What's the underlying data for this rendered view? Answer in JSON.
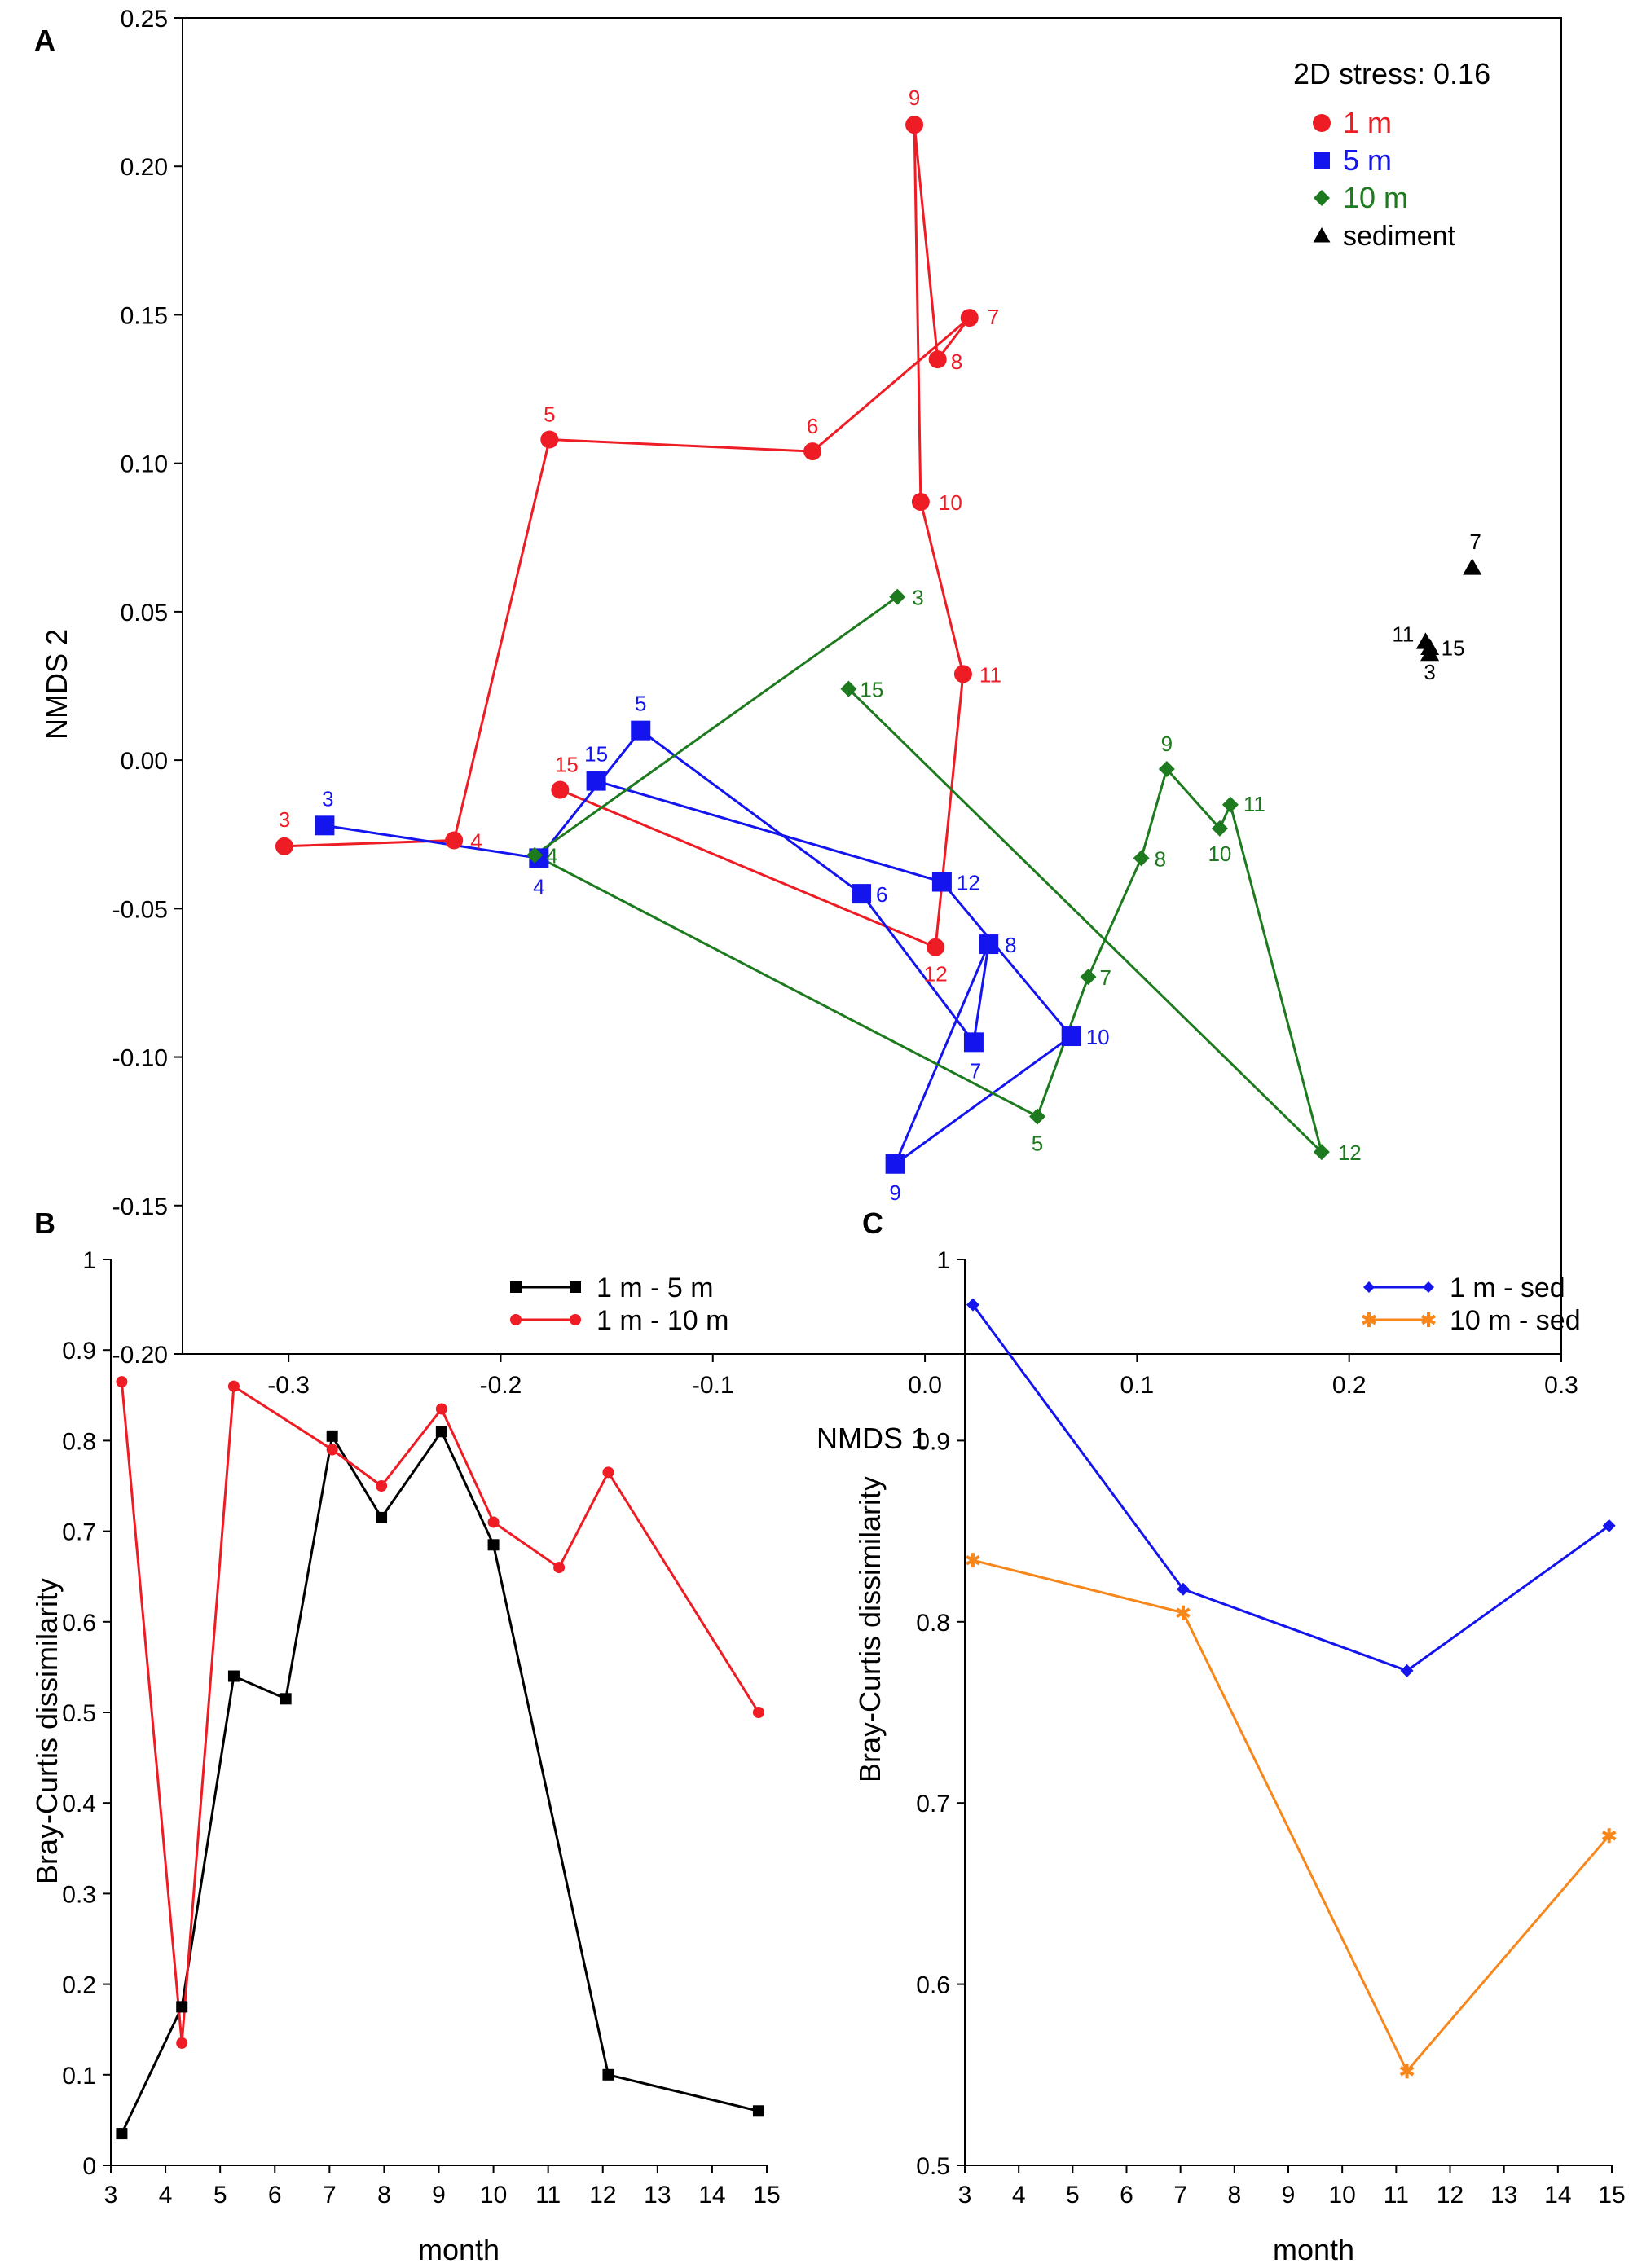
{
  "figure": {
    "panels": {
      "a": {
        "letter": "A"
      },
      "b": {
        "letter": "B"
      },
      "c": {
        "letter": "C"
      }
    }
  },
  "chart_data": [
    {
      "id": "A",
      "type": "scatter",
      "title": "",
      "xlabel": "NMDS 1",
      "ylabel": "NMDS 2",
      "xlim": [
        -0.35,
        0.3
      ],
      "ylim": [
        -0.2,
        0.25
      ],
      "xticks": [
        "-0.3",
        "-0.2",
        "-0.1",
        "0.0",
        "0.1",
        "0.2",
        "0.3"
      ],
      "xtick_values": [
        -0.3,
        -0.2,
        -0.1,
        0.0,
        0.1,
        0.2,
        0.3
      ],
      "yticks": [
        "-0.20",
        "-0.15",
        "-0.10",
        "-0.05",
        "0.00",
        "0.05",
        "0.10",
        "0.15",
        "0.20",
        "0.25"
      ],
      "ytick_values": [
        -0.2,
        -0.15,
        -0.1,
        -0.05,
        0.0,
        0.05,
        0.1,
        0.15,
        0.2,
        0.25
      ],
      "annotation": "2D stress: 0.16",
      "legend_position": "top-right",
      "series": [
        {
          "name": "1 m",
          "color": "#ee1c25",
          "marker": "circle",
          "connected": true,
          "points": [
            {
              "label": "3",
              "x": -0.302,
              "y": -0.029
            },
            {
              "label": "4",
              "x": -0.222,
              "y": -0.027
            },
            {
              "label": "5",
              "x": -0.177,
              "y": 0.108
            },
            {
              "label": "6",
              "x": -0.053,
              "y": 0.104
            },
            {
              "label": "7",
              "x": 0.021,
              "y": 0.149
            },
            {
              "label": "8",
              "x": 0.006,
              "y": 0.135
            },
            {
              "label": "9",
              "x": -0.005,
              "y": 0.214
            },
            {
              "label": "10",
              "x": -0.002,
              "y": 0.087
            },
            {
              "label": "11",
              "x": 0.018,
              "y": 0.029
            },
            {
              "label": "12",
              "x": 0.005,
              "y": -0.063
            },
            {
              "label": "15",
              "x": -0.172,
              "y": -0.01
            }
          ]
        },
        {
          "name": "5 m",
          "color": "#1414ee",
          "marker": "square",
          "connected": true,
          "points": [
            {
              "label": "3",
              "x": -0.283,
              "y": -0.022
            },
            {
              "label": "4",
              "x": -0.182,
              "y": -0.033
            },
            {
              "label": "5",
              "x": -0.134,
              "y": 0.01
            },
            {
              "label": "6",
              "x": -0.03,
              "y": -0.045
            },
            {
              "label": "7",
              "x": 0.023,
              "y": -0.095
            },
            {
              "label": "8",
              "x": 0.03,
              "y": -0.062
            },
            {
              "label": "9",
              "x": -0.014,
              "y": -0.136
            },
            {
              "label": "10",
              "x": 0.069,
              "y": -0.093
            },
            {
              "label": "12",
              "x": 0.008,
              "y": -0.041
            },
            {
              "label": "15",
              "x": -0.155,
              "y": -0.007
            }
          ]
        },
        {
          "name": "10 m",
          "color": "#1e7a1e",
          "marker": "diamond",
          "connected": true,
          "points": [
            {
              "label": "3",
              "x": -0.013,
              "y": 0.055
            },
            {
              "label": "4",
              "x": -0.184,
              "y": -0.032
            },
            {
              "label": "5",
              "x": 0.053,
              "y": -0.12
            },
            {
              "label": "7",
              "x": 0.077,
              "y": -0.073
            },
            {
              "label": "8",
              "x": 0.102,
              "y": -0.033
            },
            {
              "label": "9",
              "x": 0.114,
              "y": -0.003
            },
            {
              "label": "10",
              "x": 0.139,
              "y": -0.023
            },
            {
              "label": "11",
              "x": 0.144,
              "y": -0.015
            },
            {
              "label": "12",
              "x": 0.187,
              "y": -0.132
            },
            {
              "label": "15",
              "x": -0.036,
              "y": 0.024
            }
          ]
        },
        {
          "name": "sediment",
          "color": "#000000",
          "marker": "triangle",
          "connected": false,
          "points": [
            {
              "label": "3",
              "x": 0.238,
              "y": 0.036
            },
            {
              "label": "7",
              "x": 0.258,
              "y": 0.065
            },
            {
              "label": "11",
              "x": 0.236,
              "y": 0.04
            },
            {
              "label": "15",
              "x": 0.238,
              "y": 0.038
            }
          ]
        }
      ]
    },
    {
      "id": "B",
      "type": "line",
      "title": "",
      "xlabel": "month",
      "ylabel": "Bray-Curtis dissimilarity",
      "xlim": [
        3,
        15
      ],
      "ylim": [
        0,
        1
      ],
      "xticks": [
        "3",
        "4",
        "5",
        "6",
        "7",
        "8",
        "9",
        "10",
        "11",
        "12",
        "13",
        "14",
        "15"
      ],
      "yticks": [
        "0",
        "0.1",
        "0.2",
        "0.3",
        "0.4",
        "0.5",
        "0.6",
        "0.7",
        "0.8",
        "0.9",
        "1"
      ],
      "legend_position": "top-right",
      "series": [
        {
          "name": "1 m - 5 m",
          "color": "#000000",
          "marker": "square",
          "x": [
            3.2,
            4.3,
            5.25,
            6.2,
            7.05,
            7.95,
            9.05,
            10.0,
            12.1,
            14.85
          ],
          "values": [
            0.035,
            0.175,
            0.54,
            0.515,
            0.805,
            0.715,
            0.81,
            0.685,
            0.1,
            0.06
          ]
        },
        {
          "name": "1 m - 10 m",
          "color": "#ee1c25",
          "marker": "circle",
          "x": [
            3.2,
            4.3,
            5.25,
            7.05,
            7.95,
            9.05,
            10.0,
            11.2,
            12.1,
            14.85
          ],
          "values": [
            0.865,
            0.135,
            0.86,
            0.79,
            0.75,
            0.835,
            0.71,
            0.66,
            0.765,
            0.5
          ]
        }
      ]
    },
    {
      "id": "C",
      "type": "line",
      "title": "",
      "xlabel": "month",
      "ylabel": "Bray-Curtis dissimilarity",
      "xlim": [
        3,
        15
      ],
      "ylim": [
        0.5,
        1
      ],
      "xticks": [
        "3",
        "4",
        "5",
        "6",
        "7",
        "8",
        "9",
        "10",
        "11",
        "12",
        "13",
        "14",
        "15"
      ],
      "yticks": [
        "0.5",
        "0.6",
        "0.7",
        "0.8",
        "0.9",
        "1"
      ],
      "legend_position": "top-right",
      "series": [
        {
          "name": "1 m - sed",
          "color": "#1414ee",
          "marker": "diamond",
          "x": [
            3.15,
            7.05,
            11.2,
            14.95
          ],
          "values": [
            0.975,
            0.818,
            0.773,
            0.853
          ]
        },
        {
          "name": "10 m - sed",
          "color": "#f7861b",
          "marker": "star",
          "x": [
            3.15,
            7.05,
            11.2,
            14.95
          ],
          "values": [
            0.834,
            0.805,
            0.552,
            0.682
          ]
        }
      ]
    }
  ]
}
